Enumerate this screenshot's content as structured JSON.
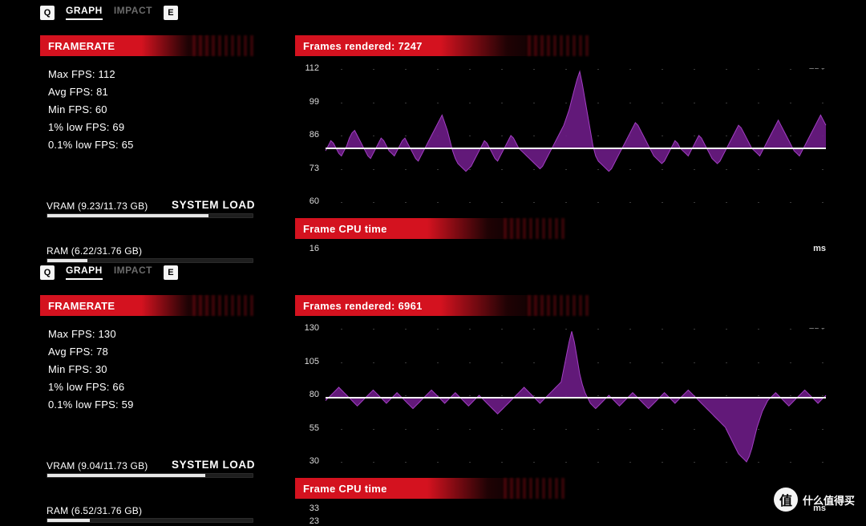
{
  "colors": {
    "background": "#000000",
    "text": "#ffffff",
    "muted": "#6b6b6b",
    "red": "#d4121f",
    "trace_fill": "#6d1c86",
    "trace_line": "#a23fc3",
    "avg_line": "#f4f4f4",
    "grid_dot": "#3a3a3a",
    "meter_track": "#1e1e1e",
    "meter_fill": "#e7e7e7"
  },
  "tabs": {
    "key_left": "Q",
    "items": [
      "GRAPH",
      "IMPACT"
    ],
    "active_index": 0,
    "key_right": "E"
  },
  "framerate_header": "FRAMERATE",
  "system_load_label": "SYSTEM LOAD",
  "watermark": {
    "badge": "值",
    "text": "什么值得买"
  },
  "panels": [
    {
      "frames_rendered_label": "Frames rendered: 7247",
      "frames_rendered_count": 7247,
      "stats": [
        {
          "label": "Max FPS",
          "value": 112
        },
        {
          "label": "Avg FPS",
          "value": 81
        },
        {
          "label": "Min FPS",
          "value": 60
        },
        {
          "label": "1% low FPS",
          "value": 69
        },
        {
          "label": "0.1% low FPS",
          "value": 65
        }
      ],
      "vram": {
        "label": "VRAM (9.23/11.73 GB)",
        "used": 9.23,
        "total": 11.73
      },
      "ram": {
        "label": "RAM (6.22/31.76 GB)",
        "used": 6.22,
        "total": 31.76
      },
      "chart": {
        "type": "line",
        "unit": "FPS",
        "ylim": [
          60,
          112
        ],
        "yticks": [
          112,
          99,
          86,
          73,
          60
        ],
        "avg": 81,
        "series_color": "#a23fc3",
        "fill_color": "#6d1c86",
        "fill_opacity": 0.9,
        "background_color": "#000000",
        "grid_color": "#3a3a3a",
        "values": [
          80,
          82,
          84,
          83,
          81,
          79,
          78,
          80,
          82,
          85,
          87,
          88,
          86,
          84,
          82,
          80,
          78,
          77,
          79,
          81,
          83,
          85,
          84,
          82,
          80,
          79,
          78,
          80,
          82,
          84,
          85,
          83,
          81,
          79,
          77,
          76,
          78,
          80,
          82,
          84,
          86,
          88,
          90,
          92,
          94,
          91,
          88,
          84,
          80,
          77,
          75,
          74,
          73,
          72,
          73,
          74,
          76,
          78,
          80,
          82,
          84,
          83,
          81,
          79,
          77,
          76,
          78,
          80,
          82,
          84,
          86,
          85,
          83,
          81,
          80,
          79,
          78,
          77,
          76,
          75,
          74,
          73,
          74,
          76,
          78,
          80,
          82,
          84,
          86,
          88,
          90,
          93,
          96,
          100,
          104,
          108,
          111,
          106,
          100,
          94,
          88,
          82,
          78,
          76,
          75,
          74,
          73,
          72,
          73,
          75,
          77,
          79,
          81,
          83,
          85,
          87,
          89,
          91,
          90,
          88,
          86,
          84,
          82,
          80,
          78,
          77,
          76,
          75,
          76,
          78,
          80,
          82,
          84,
          83,
          81,
          80,
          79,
          78,
          80,
          82,
          84,
          86,
          85,
          83,
          81,
          79,
          77,
          76,
          75,
          76,
          78,
          80,
          82,
          84,
          86,
          88,
          90,
          89,
          87,
          85,
          83,
          81,
          80,
          79,
          78,
          80,
          82,
          84,
          86,
          88,
          90,
          92,
          90,
          88,
          86,
          84,
          82,
          80,
          79,
          78,
          80,
          82,
          84,
          86,
          88,
          90,
          92,
          94,
          92,
          90
        ]
      },
      "cpu": {
        "header": "Frame CPU time",
        "unit": "ms",
        "yticks": [
          16
        ]
      }
    },
    {
      "frames_rendered_label": "Frames rendered: 6961",
      "frames_rendered_count": 6961,
      "stats": [
        {
          "label": "Max FPS",
          "value": 130
        },
        {
          "label": "Avg FPS",
          "value": 78
        },
        {
          "label": "Min FPS",
          "value": 30
        },
        {
          "label": "1% low FPS",
          "value": 66
        },
        {
          "label": "0.1% low FPS",
          "value": 59
        }
      ],
      "vram": {
        "label": "VRAM (9.04/11.73 GB)",
        "used": 9.04,
        "total": 11.73
      },
      "ram": {
        "label": "RAM (6.52/31.76 GB)",
        "used": 6.52,
        "total": 31.76
      },
      "chart": {
        "type": "line",
        "unit": "FPS",
        "ylim": [
          30,
          130
        ],
        "yticks": [
          130,
          105,
          80,
          55,
          30
        ],
        "avg": 78,
        "series_color": "#a23fc3",
        "fill_color": "#6d1c86",
        "fill_opacity": 0.9,
        "background_color": "#000000",
        "grid_color": "#3a3a3a",
        "values": [
          76,
          78,
          80,
          82,
          84,
          86,
          84,
          82,
          80,
          78,
          76,
          74,
          72,
          74,
          76,
          78,
          80,
          82,
          84,
          82,
          80,
          78,
          76,
          74,
          76,
          78,
          80,
          82,
          80,
          78,
          76,
          74,
          72,
          70,
          72,
          74,
          76,
          78,
          80,
          82,
          84,
          82,
          80,
          78,
          76,
          74,
          76,
          78,
          80,
          82,
          80,
          78,
          76,
          74,
          72,
          74,
          76,
          78,
          80,
          78,
          76,
          74,
          72,
          70,
          68,
          66,
          68,
          70,
          72,
          74,
          76,
          78,
          80,
          82,
          84,
          86,
          84,
          82,
          80,
          78,
          76,
          74,
          76,
          78,
          80,
          82,
          84,
          86,
          88,
          90,
          100,
          110,
          120,
          128,
          120,
          108,
          96,
          88,
          82,
          78,
          74,
          72,
          70,
          72,
          74,
          76,
          78,
          80,
          78,
          76,
          74,
          72,
          74,
          76,
          78,
          80,
          82,
          80,
          78,
          76,
          74,
          72,
          70,
          72,
          74,
          76,
          78,
          80,
          82,
          80,
          78,
          76,
          74,
          76,
          78,
          80,
          82,
          84,
          82,
          80,
          78,
          76,
          74,
          72,
          70,
          68,
          66,
          64,
          62,
          60,
          58,
          56,
          52,
          48,
          44,
          40,
          36,
          34,
          32,
          30,
          34,
          40,
          48,
          56,
          62,
          68,
          72,
          76,
          78,
          80,
          82,
          80,
          78,
          76,
          74,
          72,
          74,
          76,
          78,
          80,
          82,
          84,
          82,
          80,
          78,
          76,
          74,
          76,
          78,
          80
        ]
      },
      "cpu": {
        "header": "Frame CPU time",
        "unit": "ms",
        "yticks": [
          33,
          23
        ]
      }
    }
  ]
}
